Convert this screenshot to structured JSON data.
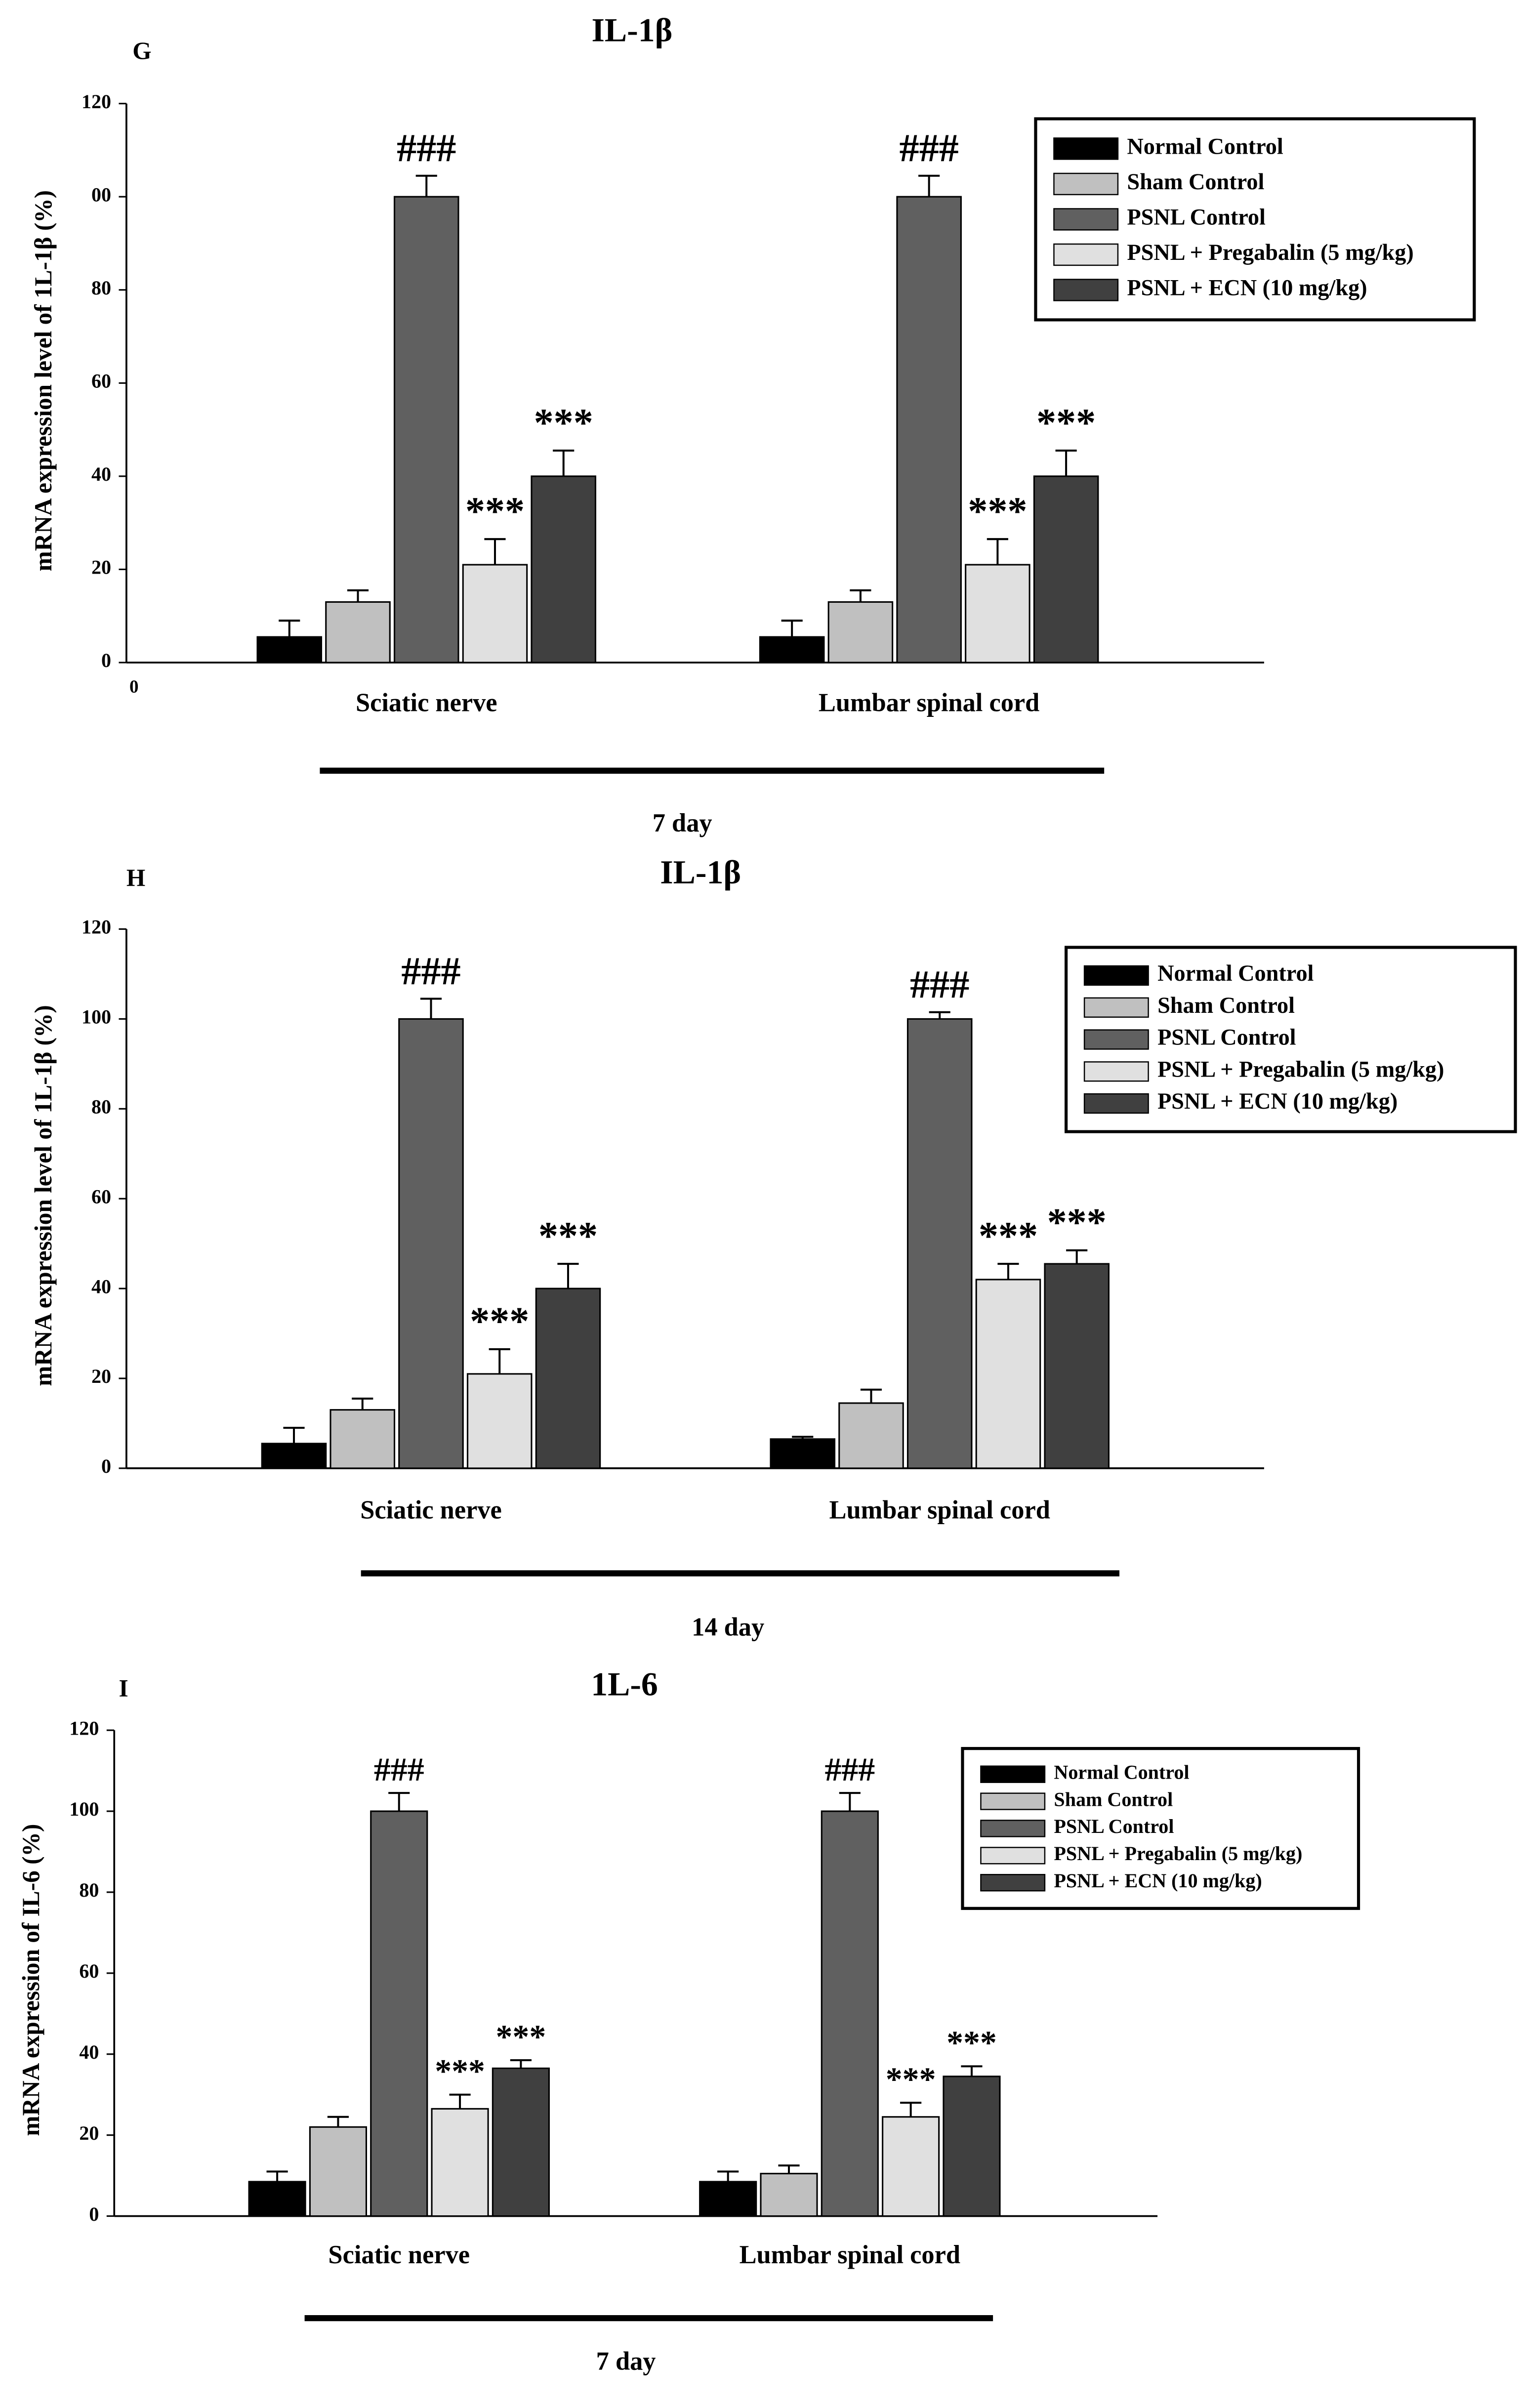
{
  "chart_data": [
    {
      "type": "bar",
      "panel": "G",
      "title": "IL-1β",
      "ylabel": "mRNA expression level of 1L-1β (%)",
      "xlabel": "7 day",
      "corner_label": "0",
      "categories": [
        "Sciatic nerve",
        "Lumbar spinal cord"
      ],
      "ylim": [
        0,
        120
      ],
      "yticks": [
        0,
        20,
        40,
        60,
        80,
        {
          "value": 100,
          "label": "00"
        },
        120
      ],
      "series": [
        {
          "name": "Normal Control",
          "color": "#000000",
          "values": [
            5.5,
            5.5
          ],
          "errors": [
            3.5,
            3.5
          ]
        },
        {
          "name": "Sham Control",
          "color": "#c0c0c0",
          "values": [
            13,
            13
          ],
          "errors": [
            2.5,
            2.5
          ]
        },
        {
          "name": "PSNL Control",
          "color": "#606060",
          "values": [
            100,
            100
          ],
          "errors": [
            4.5,
            4.5
          ],
          "annotations": [
            "###",
            "###"
          ]
        },
        {
          "name": "PSNL + Pregabalin (5 mg/kg)",
          "color": "#e0e0e0",
          "values": [
            21,
            21
          ],
          "errors": [
            5.5,
            5.5
          ],
          "annotations": [
            "***",
            "***"
          ]
        },
        {
          "name": "PSNL + ECN (10 mg/kg)",
          "color": "#404040",
          "values": [
            40,
            40
          ],
          "errors": [
            5.5,
            5.5
          ],
          "annotations": [
            "***",
            "***"
          ]
        }
      ]
    },
    {
      "type": "bar",
      "panel": "H",
      "title": "IL-1β",
      "ylabel": "mRNA expression level of 1L-1β (%)",
      "xlabel": "14 day",
      "categories": [
        "Sciatic nerve",
        "Lumbar spinal cord"
      ],
      "ylim": [
        0,
        120
      ],
      "yticks": [
        0,
        20,
        40,
        60,
        80,
        100,
        120
      ],
      "series": [
        {
          "name": "Normal Control",
          "color": "#000000",
          "values": [
            5.5,
            6.5
          ],
          "errors": [
            3.5,
            0.5
          ]
        },
        {
          "name": "Sham Control",
          "color": "#c0c0c0",
          "values": [
            13,
            14.5
          ],
          "errors": [
            2.5,
            3
          ]
        },
        {
          "name": "PSNL Control",
          "color": "#606060",
          "values": [
            100,
            100
          ],
          "errors": [
            4.5,
            1.5
          ],
          "annotations": [
            "###",
            "###"
          ]
        },
        {
          "name": "PSNL + Pregabalin (5 mg/kg)",
          "color": "#e0e0e0",
          "values": [
            21,
            42
          ],
          "errors": [
            5.5,
            3.5
          ],
          "annotations": [
            "***",
            "***"
          ]
        },
        {
          "name": "PSNL + ECN (10 mg/kg)",
          "color": "#404040",
          "values": [
            40,
            45.5
          ],
          "errors": [
            5.5,
            3
          ],
          "annotations": [
            "***",
            "***"
          ]
        }
      ]
    },
    {
      "type": "bar",
      "panel": "I",
      "title": "1L-6",
      "ylabel": "mRNA expression of IL-6 (%)",
      "xlabel": "7 day",
      "categories": [
        "Sciatic nerve",
        "Lumbar spinal cord"
      ],
      "ylim": [
        0,
        120
      ],
      "yticks": [
        0,
        20,
        40,
        60,
        80,
        100,
        120
      ],
      "series": [
        {
          "name": "Normal Control",
          "color": "#000000",
          "values": [
            8.5,
            8.5
          ],
          "errors": [
            2.5,
            2.5
          ]
        },
        {
          "name": "Sham Control",
          "color": "#c0c0c0",
          "values": [
            22,
            10.5
          ],
          "errors": [
            2.5,
            2
          ]
        },
        {
          "name": "PSNL Control",
          "color": "#606060",
          "values": [
            100,
            100
          ],
          "errors": [
            4.5,
            4.5
          ],
          "annotations": [
            "###",
            "###"
          ]
        },
        {
          "name": "PSNL + Pregabalin (5 mg/kg)",
          "color": "#e0e0e0",
          "values": [
            26.5,
            24.5
          ],
          "errors": [
            3.5,
            3.5
          ],
          "annotations": [
            "***",
            "***"
          ]
        },
        {
          "name": "PSNL + ECN (10 mg/kg)",
          "color": "#404040",
          "values": [
            36.5,
            34.5
          ],
          "errors": [
            2,
            2.5
          ],
          "annotations": [
            "***",
            "***"
          ]
        }
      ]
    }
  ]
}
